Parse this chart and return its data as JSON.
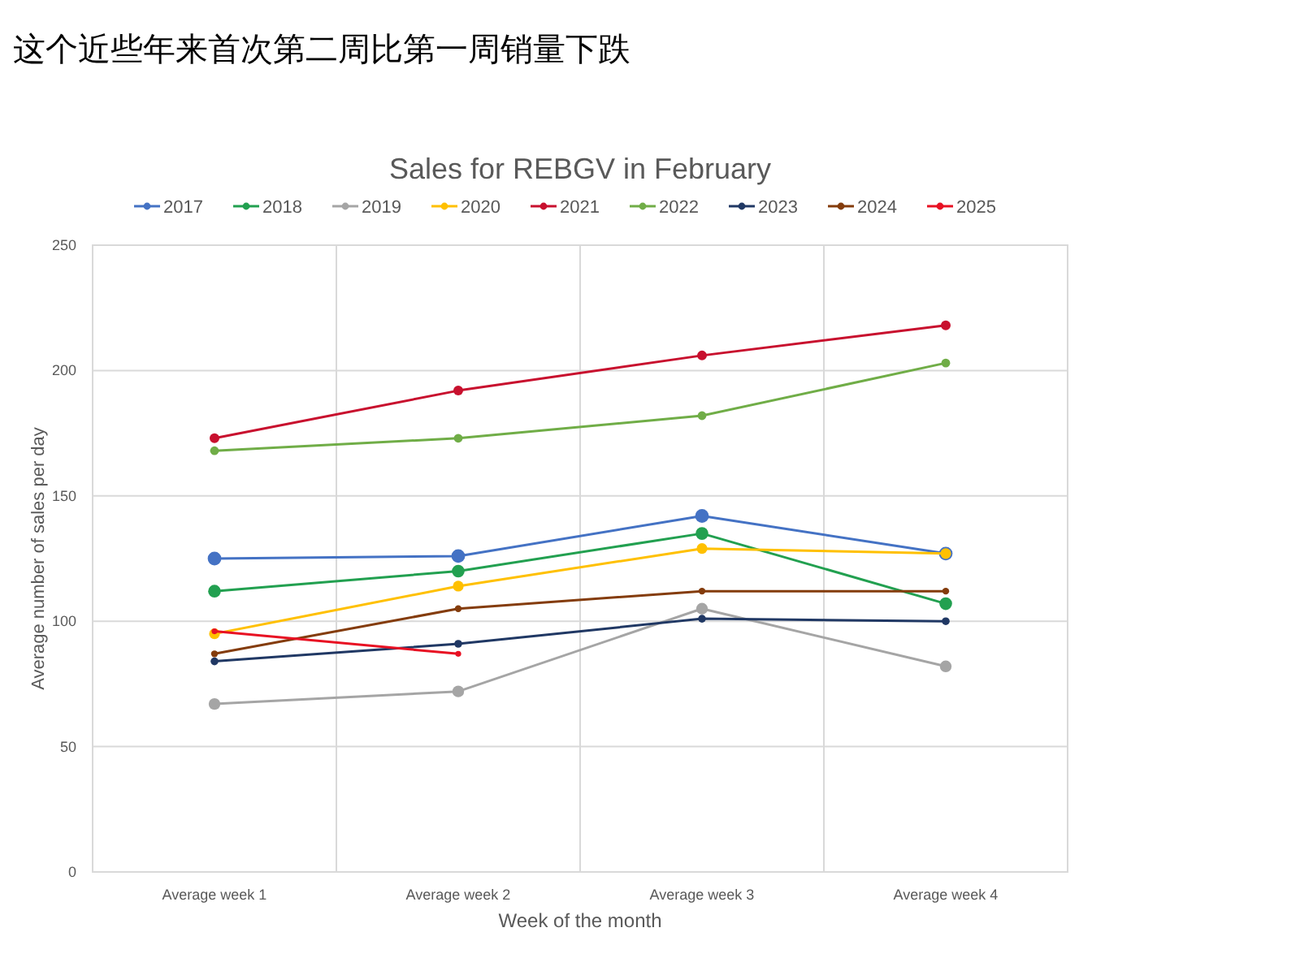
{
  "chart_data": {
    "type": "line",
    "title": "Sales for REBGV in February",
    "xlabel": "Week of the month",
    "ylabel": "Average number of sales per day",
    "annotations": [
      "这个近些年来首次第二周比第一周销量下跌"
    ],
    "categories": [
      "Average week 1",
      "Average week 2",
      "Average week 3",
      "Average week 4"
    ],
    "ylim": [
      0,
      250
    ],
    "yticks": [
      0,
      50,
      100,
      150,
      200,
      250
    ],
    "grid": true,
    "legend": "top",
    "marker": "circle",
    "line_style": "solid",
    "series": [
      {
        "name": "2017",
        "color": "#4472c4",
        "values": [
          125,
          126,
          142,
          127
        ]
      },
      {
        "name": "2018",
        "color": "#22a050",
        "values": [
          112,
          120,
          135,
          107
        ]
      },
      {
        "name": "2019",
        "color": "#a5a5a5",
        "values": [
          67,
          72,
          105,
          82
        ]
      },
      {
        "name": "2020",
        "color": "#ffc000",
        "values": [
          95,
          114,
          129,
          127
        ]
      },
      {
        "name": "2021",
        "color": "#c8102e",
        "values": [
          173,
          192,
          206,
          218
        ]
      },
      {
        "name": "2022",
        "color": "#70ad47",
        "values": [
          168,
          173,
          182,
          203
        ]
      },
      {
        "name": "2023",
        "color": "#203864",
        "values": [
          84,
          91,
          101,
          100
        ]
      },
      {
        "name": "2024",
        "color": "#843c0c",
        "values": [
          87,
          105,
          112,
          112
        ]
      },
      {
        "name": "2025",
        "color": "#e81123",
        "values": [
          96,
          87,
          null,
          null
        ]
      }
    ]
  }
}
